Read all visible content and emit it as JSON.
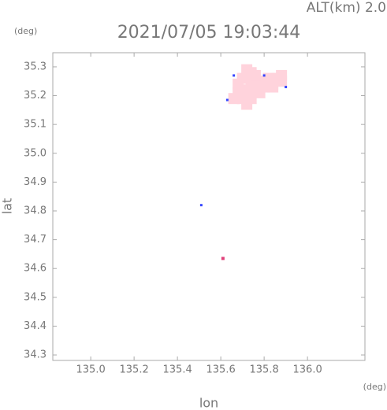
{
  "chart_data": {
    "type": "scatter",
    "title": "2021/07/05 19:03:44",
    "altitude_label": "ALT(km) 2.0",
    "y_unit": "(deg)",
    "x_unit": "(deg)",
    "xlabel": "lon",
    "ylabel": "lat",
    "xlim": [
      134.825,
      136.265
    ],
    "ylim": [
      34.281,
      35.349
    ],
    "xticks": [
      {
        "value": 135,
        "label": "135.0"
      },
      135.2,
      135.4,
      135.6,
      135.8,
      {
        "value": 136,
        "label": "136.0"
      }
    ],
    "yticks": [
      34.3,
      34.4,
      34.5,
      34.6,
      34.7,
      34.8,
      34.9,
      {
        "value": 35,
        "label": "35.0"
      },
      35.1,
      35.2,
      35.3
    ],
    "series": [
      {
        "color": "#ffd3dc",
        "size": 7,
        "x": [
          135.72,
          135.74,
          135.7,
          135.74,
          135.78,
          135.82,
          135.86,
          135.88,
          135.84,
          135.8,
          135.76,
          135.72,
          135.68,
          135.66,
          135.7,
          135.74,
          135.78,
          135.72,
          135.88,
          135.84,
          135.76,
          135.68
        ],
        "values": [
          35.29,
          35.28,
          35.26,
          35.25,
          35.25,
          35.26,
          35.26,
          35.25,
          35.23,
          35.23,
          35.22,
          35.22,
          35.21,
          35.19,
          35.19,
          35.19,
          35.21,
          35.17,
          35.27,
          35.24,
          35.27,
          35.24
        ]
      },
      {
        "color": "#3344ff",
        "size": 1.5,
        "x": [
          135.8,
          135.63,
          135.51,
          135.66,
          135.9
        ],
        "values": [
          35.27,
          35.185,
          34.82,
          35.27,
          35.23
        ]
      },
      {
        "color": "#e0407a",
        "size": 2,
        "x": [
          135.61
        ],
        "values": [
          34.635
        ]
      }
    ]
  }
}
